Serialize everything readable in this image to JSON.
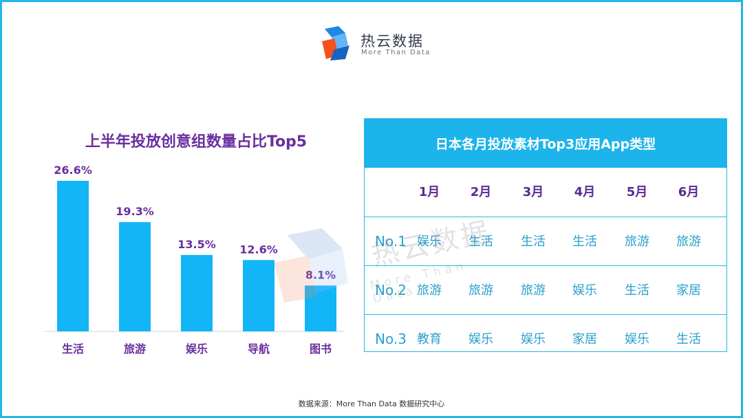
{
  "logo": {
    "name_cn": "热云数据",
    "name_en": "More Than Data"
  },
  "watermark": {
    "name_cn": "热云数据",
    "name_en": "More Than Data"
  },
  "chart_data": {
    "type": "bar",
    "title": "上半年投放创意组数量占比Top5",
    "categories": [
      "生活",
      "旅游",
      "娱乐",
      "导航",
      "图书"
    ],
    "values": [
      26.6,
      19.3,
      13.5,
      12.6,
      8.1
    ],
    "value_labels": [
      "26.6%",
      "19.3%",
      "13.5%",
      "12.6%",
      "8.1%"
    ],
    "xlabel": "",
    "ylabel": "",
    "ylim": [
      0,
      26.6
    ],
    "grid": false,
    "bar_color": "#12b5f6",
    "label_color": "#6a2e9e"
  },
  "table": {
    "title": "日本各月投放素材Top3应用App类型",
    "months": [
      "1月",
      "2月",
      "3月",
      "4月",
      "5月",
      "6月"
    ],
    "rows": [
      {
        "label": "No.1",
        "cells": [
          "娱乐",
          "生活",
          "生活",
          "生活",
          "旅游",
          "旅游"
        ]
      },
      {
        "label": "No.2",
        "cells": [
          "旅游",
          "旅游",
          "旅游",
          "娱乐",
          "生活",
          "家居"
        ]
      },
      {
        "label": "No.3",
        "cells": [
          "教育",
          "娱乐",
          "娱乐",
          "家居",
          "娱乐",
          "生活"
        ]
      }
    ],
    "header_color": "#1cb4ea"
  },
  "source": "数据来源：More Than Data 数据研究中心"
}
